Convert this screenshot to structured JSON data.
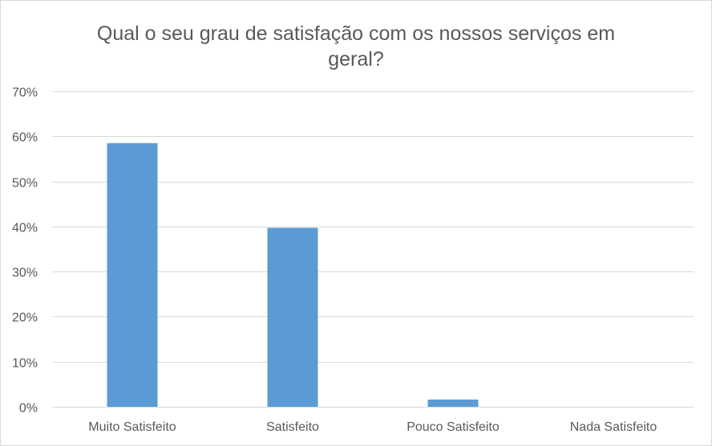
{
  "chart_data": {
    "type": "bar",
    "title_lines": [
      "Qual o seu grau de satisfação com os nossos serviços em",
      "geral?"
    ],
    "title": "Qual o seu grau de satisfação com os nossos serviços em geral?",
    "xlabel": "",
    "ylabel": "",
    "categories": [
      "Muito Satisfeito",
      "Satisfeito",
      "Pouco Satisfeito",
      "Nada Satisfeito"
    ],
    "values": [
      0.585,
      0.397,
      0.016,
      0.0
    ],
    "ylim": [
      0,
      0.7
    ],
    "ytick_values": [
      0,
      0.1,
      0.2,
      0.3,
      0.4,
      0.5,
      0.6,
      0.7
    ],
    "ytick_labels": [
      "0%",
      "10%",
      "20%",
      "30%",
      "40%",
      "50%",
      "60%",
      "70%"
    ],
    "grid": true,
    "legend": "none",
    "colors": {
      "bar": "#5b9bd5",
      "grid": "#d9d9d9",
      "text": "#595959"
    }
  }
}
